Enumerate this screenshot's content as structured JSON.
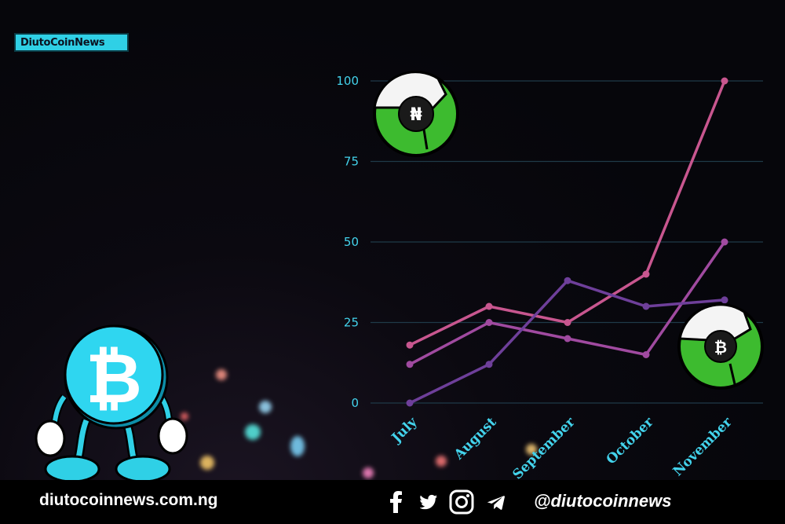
{
  "brand": {
    "logo_text": "DiutoCoinNews"
  },
  "footer": {
    "site": "diutocoinnews.com.ng",
    "handle": "@diutocoinnews",
    "icons": [
      "facebook-icon",
      "twitter-icon",
      "instagram-icon",
      "telegram-icon"
    ]
  },
  "badges": {
    "top_symbol": "₦",
    "bottom_symbol": "₿"
  },
  "colors": {
    "background": "#05050c",
    "accent": "#2fd0e6",
    "series_pink": "#c8568f",
    "series_magenta": "#a04aa0",
    "series_purple": "#6e3f9a",
    "badge_green": "#3dbb2f"
  },
  "chart_data": {
    "type": "line",
    "categories": [
      "July",
      "August",
      "September",
      "October",
      "November"
    ],
    "ylim": [
      0,
      100
    ],
    "yticks": [
      0,
      25,
      50,
      75,
      100
    ],
    "grid": true,
    "title": "",
    "xlabel": "",
    "ylabel": "",
    "series": [
      {
        "color": "#c8568f",
        "values": [
          18,
          30,
          25,
          40,
          100
        ]
      },
      {
        "color": "#a04aa0",
        "values": [
          12,
          25,
          20,
          15,
          50
        ]
      },
      {
        "color": "#6e3f9a",
        "values": [
          0,
          12,
          38,
          30,
          32
        ]
      }
    ]
  }
}
